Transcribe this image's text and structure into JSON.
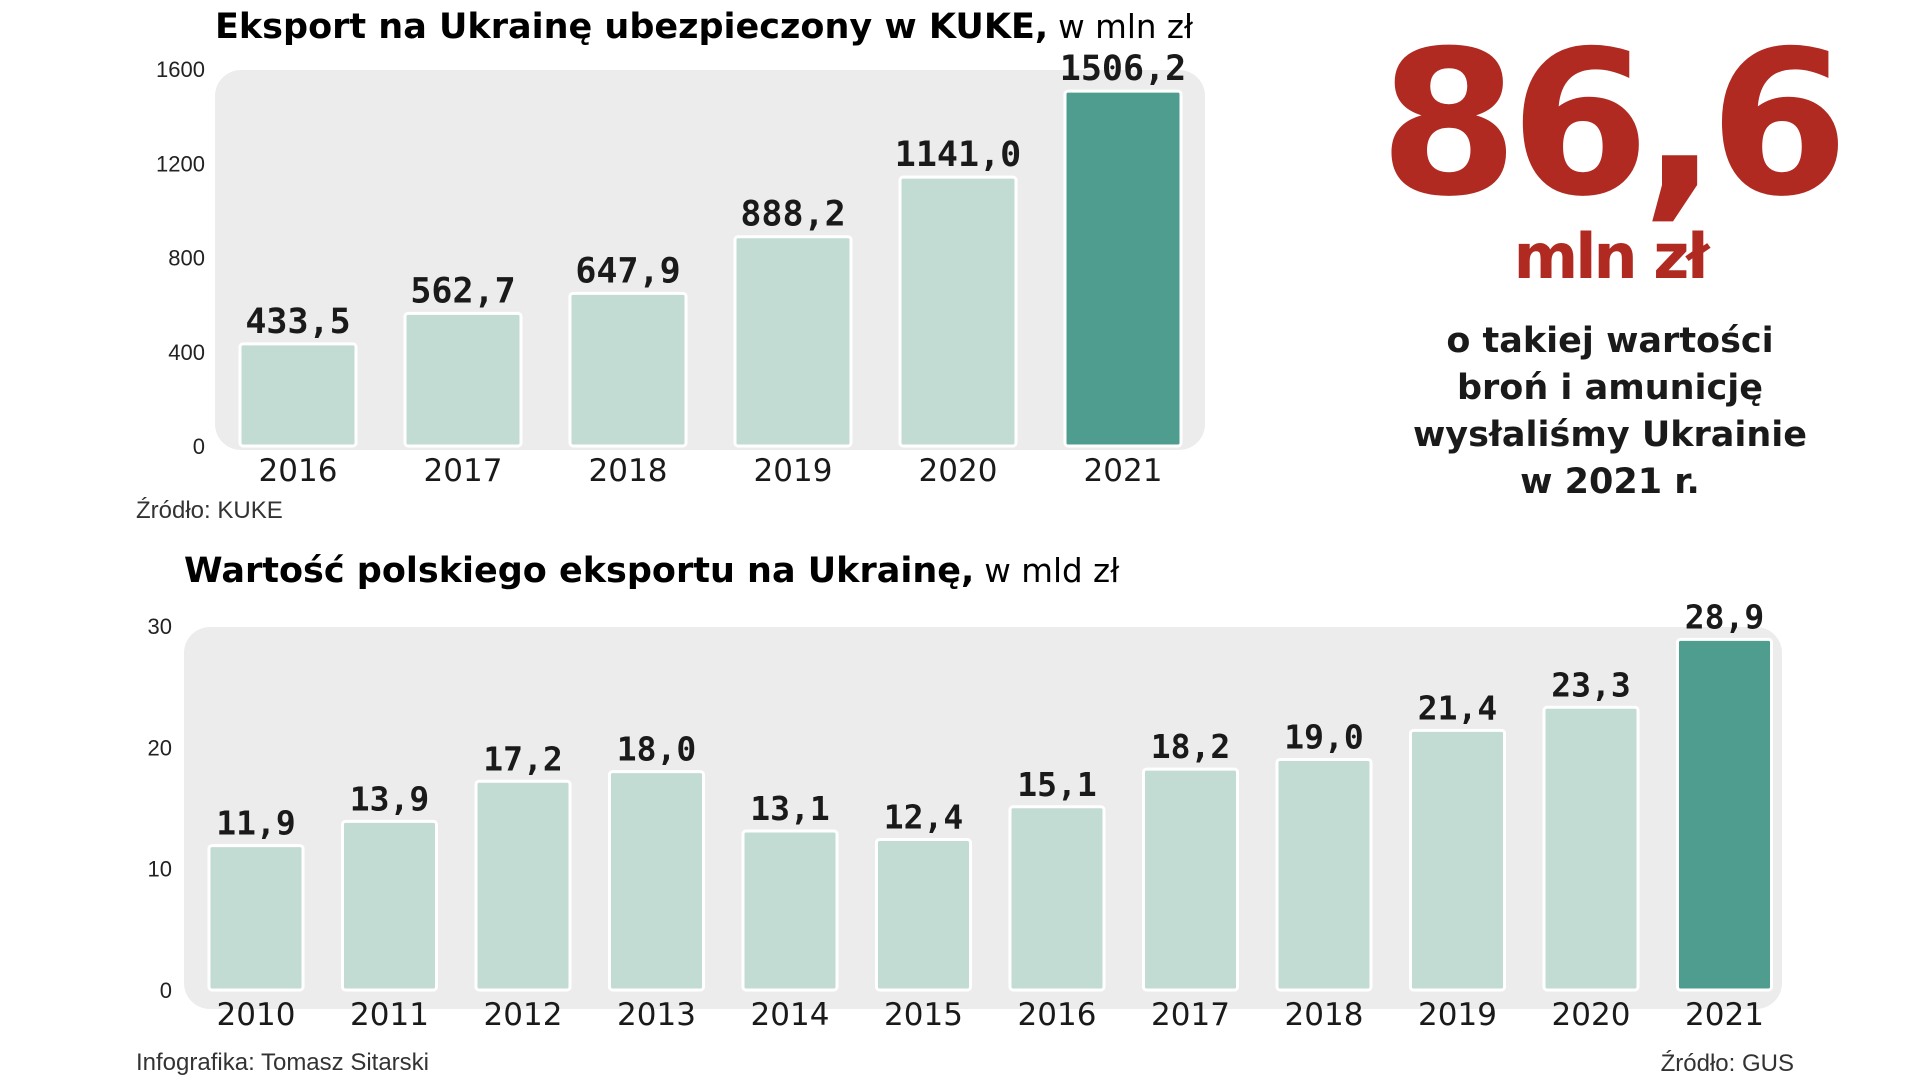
{
  "chart_data": [
    {
      "type": "bar",
      "title": "Eksport na Ukrainę ubezpieczony w KUKE,",
      "unit_label": "w mln zł",
      "categories": [
        "2016",
        "2017",
        "2018",
        "2019",
        "2020",
        "2021"
      ],
      "values": [
        433.5,
        562.7,
        647.9,
        888.2,
        1141.0,
        1506.2
      ],
      "value_labels": [
        "433,5",
        "562,7",
        "647,9",
        "888,2",
        "1141,0",
        "1506,2"
      ],
      "ylim": [
        0,
        1600
      ],
      "yticks": [
        "0",
        "400",
        "800",
        "1200",
        "1600"
      ],
      "highlight_index": 5,
      "source": "Źródło: KUKE"
    },
    {
      "type": "bar",
      "title": "Wartość polskiego eksportu na Ukrainę,",
      "unit_label": "w mld zł",
      "categories": [
        "2010",
        "2011",
        "2012",
        "2013",
        "2014",
        "2015",
        "2016",
        "2017",
        "2018",
        "2019",
        "2020",
        "2021"
      ],
      "values": [
        11.9,
        13.9,
        17.2,
        18.0,
        13.1,
        12.4,
        15.1,
        18.2,
        19.0,
        21.4,
        23.3,
        28.9
      ],
      "value_labels": [
        "11,9",
        "13,9",
        "17,2",
        "18,0",
        "13,1",
        "12,4",
        "15,1",
        "18,2",
        "19,0",
        "21,4",
        "23,3",
        "28,9"
      ],
      "ylim": [
        0,
        30
      ],
      "yticks": [
        "0",
        "10",
        "20",
        "30"
      ],
      "highlight_index": 11,
      "source": "Źródło: GUS"
    }
  ],
  "highlight": {
    "value": "86,6",
    "unit": "mln zł",
    "description": [
      "o takiej wartości",
      "broń i amunicję",
      "wysłaliśmy Ukrainie",
      "w 2021 r."
    ]
  },
  "credit": "Infografika: Tomasz Sitarski",
  "colors": {
    "bar": "#c2dbd3",
    "bar_highlight": "#4f9d8f",
    "panel": "#ececec",
    "accent": "#b02a22"
  }
}
